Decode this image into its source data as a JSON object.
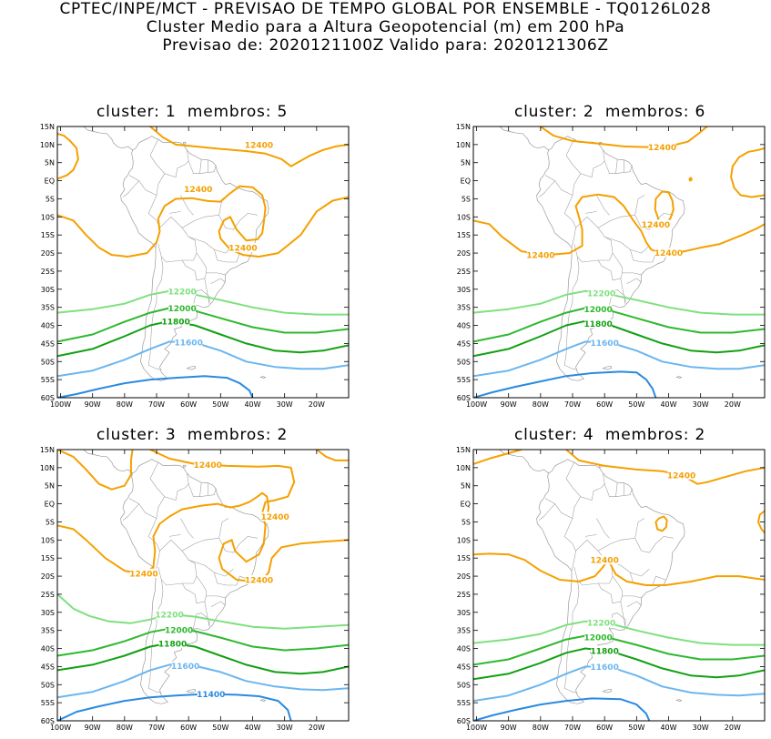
{
  "header": {
    "line1": "CPTEC/INPE/MCT - PREVISAO DE TEMPO GLOBAL POR ENSEMBLE - TQ0126L028",
    "line2": "Cluster Medio para a Altura Geopotencial (m) em 200 hPa",
    "line3": "Previsao de: 2020121100Z   Valido para: 2020121306Z"
  },
  "axes": {
    "lat_labels": [
      "15N",
      "10N",
      "5N",
      "EQ",
      "5S",
      "10S",
      "15S",
      "20S",
      "25S",
      "30S",
      "35S",
      "40S",
      "45S",
      "50S",
      "55S",
      "60S"
    ],
    "lon_labels": [
      "100W",
      "90W",
      "80W",
      "70W",
      "60W",
      "50W",
      "40W",
      "30W",
      "20W"
    ]
  },
  "colors": {
    "c12400": "#f5a000",
    "c12200": "#7ee07e",
    "c12000": "#2eb82e",
    "c11800": "#12a012",
    "c11600": "#6bb6f0",
    "c11400": "#2a8ae0",
    "map": "#9a9a9a"
  },
  "clusters": [
    {
      "title": "cluster: 1  membros: 5",
      "labels": [
        "12400",
        "12400",
        "12400",
        "12200",
        "12000",
        "11800",
        "11600"
      ]
    },
    {
      "title": "cluster: 2  membros: 6",
      "labels": [
        "12400",
        "12400",
        "12400",
        "12400",
        "12200",
        "12000",
        "11800",
        "11600"
      ]
    },
    {
      "title": "cluster: 3  membros: 2",
      "labels": [
        "12400",
        "12400",
        "12400",
        "12400",
        "12200",
        "12000",
        "11800",
        "11600",
        "11400"
      ]
    },
    {
      "title": "cluster: 4  membros: 2",
      "labels": [
        "12400",
        "12400",
        "12200",
        "12000",
        "11800",
        "11600"
      ]
    }
  ]
}
